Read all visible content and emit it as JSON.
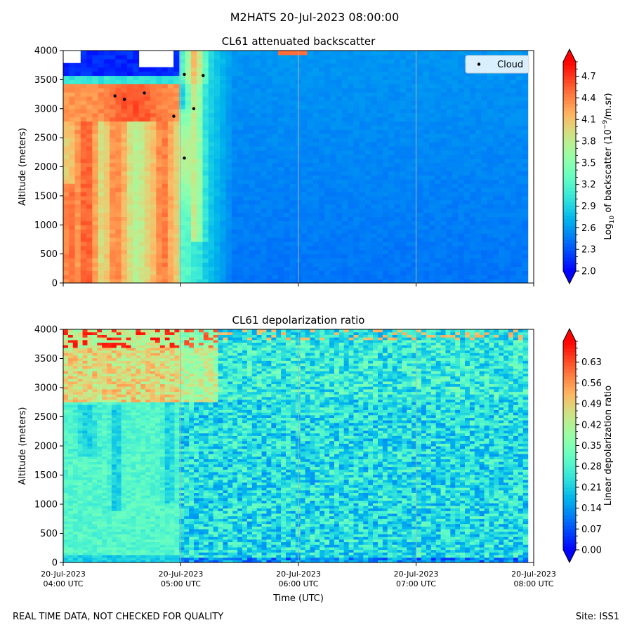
{
  "figure": {
    "suptitle": "M2HATS 20-Jul-2023 08:00:00",
    "footer_left": "REAL TIME DATA, NOT CHECKED FOR QUALITY",
    "footer_right": "Site: ISS1"
  },
  "chart_data": [
    {
      "type": "heatmap",
      "title": "CL61 attenuated backscatter",
      "ylabel": "Altitude (meters)",
      "xlabel": "",
      "x_hours": [
        4,
        8
      ],
      "ylim": [
        0,
        4000
      ],
      "y_ticks": [
        0,
        500,
        1000,
        1500,
        2000,
        2500,
        3000,
        3500,
        4000
      ],
      "x_ticks": [
        4,
        5,
        6,
        7,
        8
      ],
      "x_tick_labels": [],
      "grid_x": [
        5,
        6,
        7
      ],
      "colorbar": {
        "label_parts": [
          "Log",
          "10",
          " of backscatter (10",
          "−9",
          "/m.sr)"
        ],
        "min": 2.0,
        "max": 4.9,
        "ticks": [
          2.0,
          2.3,
          2.6,
          2.9,
          3.2,
          3.5,
          3.8,
          4.1,
          4.4,
          4.7
        ],
        "tick_labels": [
          "2.0",
          "2.3",
          "2.6",
          "2.9",
          "3.2",
          "3.5",
          "3.8",
          "4.1",
          "4.4",
          "4.7"
        ]
      },
      "legend": {
        "label": "Cloud",
        "position": "top-right"
      },
      "cloud_points": [
        {
          "t": 4.44,
          "alt": 3220
        },
        {
          "t": 4.52,
          "alt": 3160
        },
        {
          "t": 4.69,
          "alt": 3270
        },
        {
          "t": 4.94,
          "alt": 2870
        },
        {
          "t": 5.03,
          "alt": 3590
        },
        {
          "t": 5.03,
          "alt": 2150
        },
        {
          "t": 5.11,
          "alt": 3000
        },
        {
          "t": 5.19,
          "alt": 3570
        }
      ]
    },
    {
      "type": "heatmap",
      "title": "CL61 depolarization ratio",
      "ylabel": "Altitude (meters)",
      "xlabel": "Time (UTC)",
      "x_hours": [
        4,
        8
      ],
      "ylim": [
        0,
        4000
      ],
      "y_ticks": [
        0,
        500,
        1000,
        1500,
        2000,
        2500,
        3000,
        3500,
        4000
      ],
      "x_ticks": [
        4,
        5,
        6,
        7,
        8
      ],
      "x_tick_labels": [
        [
          "20-Jul-2023",
          "04:00 UTC"
        ],
        [
          "20-Jul-2023",
          "05:00 UTC"
        ],
        [
          "20-Jul-2023",
          "06:00 UTC"
        ],
        [
          "20-Jul-2023",
          "07:00 UTC"
        ],
        [
          "20-Jul-2023",
          "08:00 UTC"
        ]
      ],
      "grid_x": [
        5,
        6,
        7
      ],
      "colorbar": {
        "label_parts": [
          "Linear depolarization ratio"
        ],
        "min": 0.0,
        "max": 0.7,
        "ticks": [
          0.0,
          0.07,
          0.14,
          0.21,
          0.28,
          0.35,
          0.42,
          0.49,
          0.56,
          0.63
        ],
        "tick_labels": [
          "0.00",
          "0.07",
          "0.14",
          "0.21",
          "0.28",
          "0.35",
          "0.42",
          "0.49",
          "0.56",
          "0.63"
        ]
      }
    }
  ]
}
